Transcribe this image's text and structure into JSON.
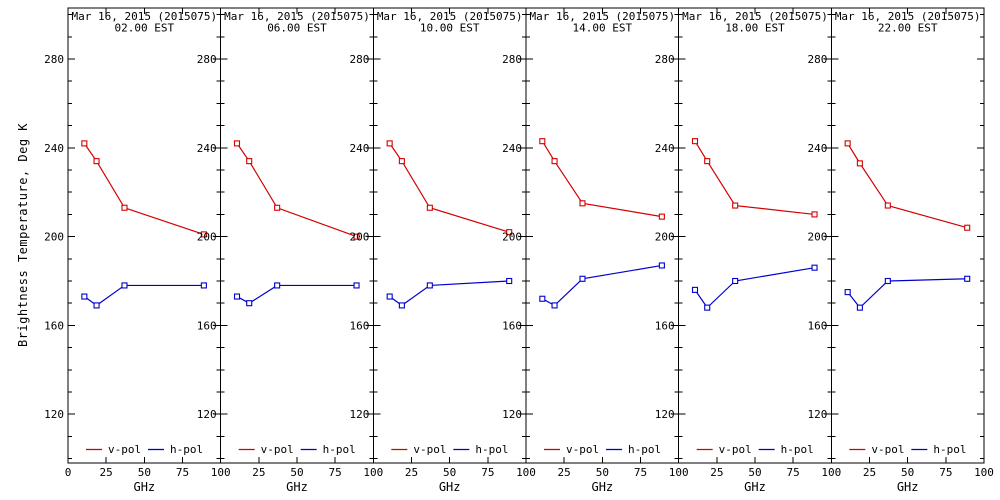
{
  "figure": {
    "ylabel": "Brightness Temperature, Deg K",
    "xlabel": "GHz"
  },
  "chart_data": {
    "type": "line",
    "x": [
      10.7,
      18.7,
      37,
      89
    ],
    "xlabel": "GHz",
    "ylabel": "Brightness Temperature, Deg K",
    "xlim": [
      0,
      100
    ],
    "ylim": [
      98,
      303
    ],
    "x_tick_labels": [
      0,
      25,
      50,
      75,
      100
    ],
    "y_tick_labels": [
      120,
      160,
      200,
      240,
      280
    ],
    "y_minor_tick_step": 10,
    "grid": false,
    "legend_position": "bottom-inside-each-panel",
    "legend": [
      {
        "name": "v-pol",
        "color": "#d40000"
      },
      {
        "name": "h-pol",
        "color": "#0000cc"
      }
    ],
    "panels": [
      {
        "title": "Mar 16, 2015 (2015075)",
        "subtitle": "02.00 EST",
        "series": [
          {
            "name": "v-pol",
            "values": [
              242,
              234,
              213,
              201
            ]
          },
          {
            "name": "h-pol",
            "values": [
              173,
              169,
              178,
              178
            ]
          }
        ]
      },
      {
        "title": "Mar 16, 2015 (2015075)",
        "subtitle": "06.00 EST",
        "series": [
          {
            "name": "v-pol",
            "values": [
              242,
              234,
              213,
              200
            ]
          },
          {
            "name": "h-pol",
            "values": [
              173,
              170,
              178,
              178
            ]
          }
        ]
      },
      {
        "title": "Mar 16, 2015 (2015075)",
        "subtitle": "10.00 EST",
        "series": [
          {
            "name": "v-pol",
            "values": [
              242,
              234,
              213,
              202
            ]
          },
          {
            "name": "h-pol",
            "values": [
              173,
              169,
              178,
              180
            ]
          }
        ]
      },
      {
        "title": "Mar 16, 2015 (2015075)",
        "subtitle": "14.00 EST",
        "series": [
          {
            "name": "v-pol",
            "values": [
              243,
              234,
              215,
              209
            ]
          },
          {
            "name": "h-pol",
            "values": [
              172,
              169,
              181,
              187
            ]
          }
        ]
      },
      {
        "title": "Mar 16, 2015 (2015075)",
        "subtitle": "18.00 EST",
        "series": [
          {
            "name": "v-pol",
            "values": [
              243,
              234,
              214,
              210
            ]
          },
          {
            "name": "h-pol",
            "values": [
              176,
              168,
              180,
              186
            ]
          }
        ]
      },
      {
        "title": "Mar 16, 2015 (2015075)",
        "subtitle": "22.00 EST",
        "series": [
          {
            "name": "v-pol",
            "values": [
              242,
              233,
              214,
              204
            ]
          },
          {
            "name": "h-pol",
            "values": [
              175,
              168,
              180,
              181
            ]
          }
        ]
      }
    ]
  }
}
